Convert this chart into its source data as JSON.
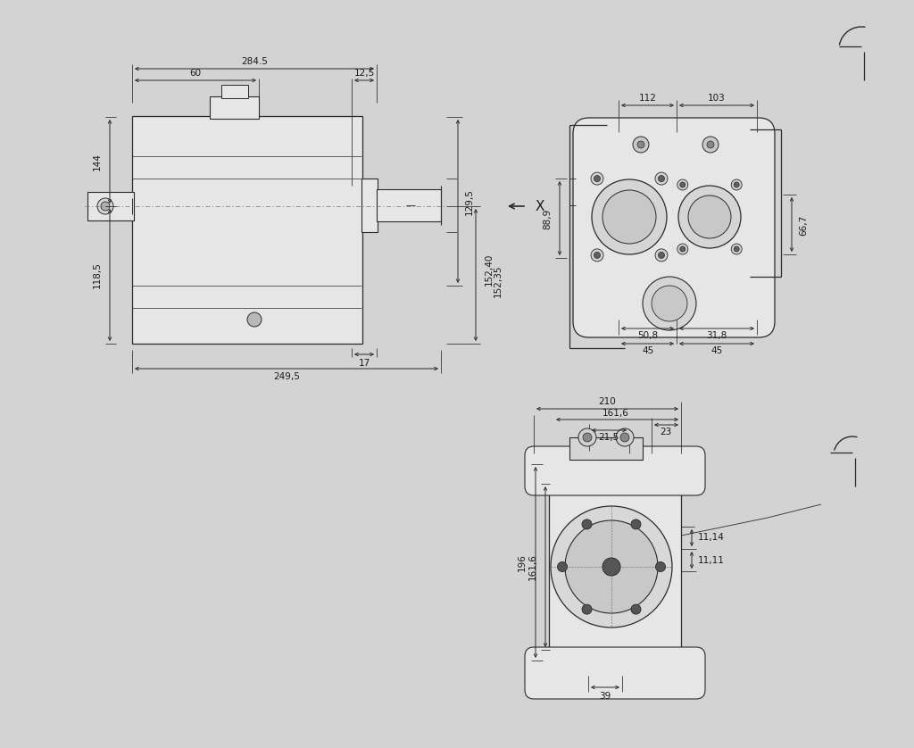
{
  "bg_color": "#d3d3d3",
  "line_color": "#2a2a2a",
  "text_color": "#1a1a1a",
  "fig_width": 10.24,
  "fig_height": 8.38,
  "dims_view1": {
    "284_5": "284.5",
    "60": "60",
    "12_5": "12,5",
    "144": "144",
    "118_5": "118,5",
    "17": "17",
    "249_5": "249,5",
    "129_5": "129,5",
    "152_40": "152,40",
    "152_35": "152,35"
  },
  "dims_view2": {
    "112": "112",
    "103": "103",
    "88_9": "88,9",
    "66_7": "66,7",
    "50_8": "50,8",
    "31_8": "31,8",
    "45a": "45",
    "45b": "45"
  },
  "dims_view3": {
    "210": "210",
    "161_6a": "161,6",
    "23": "23",
    "21_5": "21,5",
    "196": "196",
    "161_6b": "161,6",
    "11_14": "11,14",
    "11_11": "11,11",
    "39": "39"
  }
}
